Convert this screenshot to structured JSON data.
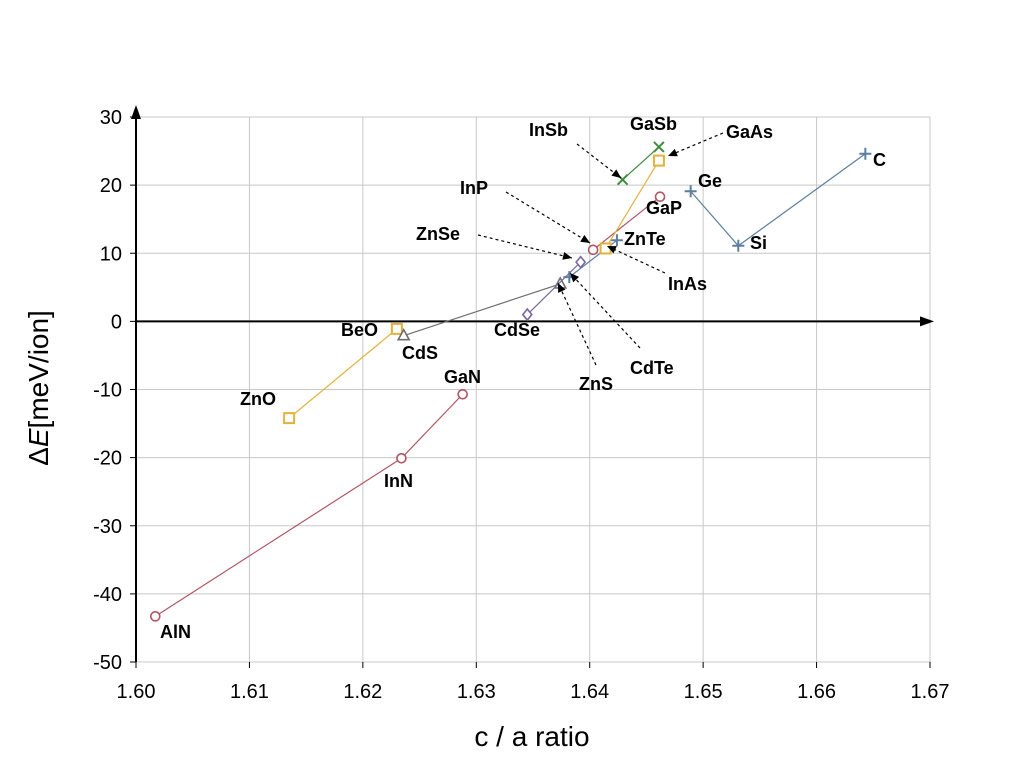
{
  "chart_data": {
    "type": "scatter",
    "xlabel": "c / a ratio",
    "ylabel_prefix": "Δ",
    "ylabel_italic": "E",
    "ylabel_suffix": "[meV/ion]",
    "xlim": [
      1.6,
      1.67
    ],
    "ylim": [
      -50,
      30
    ],
    "xticks": [
      "1.60",
      "1.61",
      "1.62",
      "1.63",
      "1.64",
      "1.65",
      "1.66",
      "1.67"
    ],
    "yticks": [
      "30",
      "20",
      "10",
      "0",
      "-10",
      "-20",
      "-30",
      "-40",
      "-50"
    ],
    "grid": true,
    "series": [
      {
        "marker": "circle",
        "color": "#b05562",
        "points": [
          {
            "label": "AlN",
            "x": 1.6017,
            "y": -43.3
          },
          {
            "label": "InN",
            "x": 1.6234,
            "y": -20.1
          },
          {
            "label": "GaN",
            "x": 1.6288,
            "y": -10.7
          }
        ]
      },
      {
        "marker": "square",
        "color": "#e2b23a",
        "points": [
          {
            "label": "ZnO",
            "x": 1.6135,
            "y": -14.2
          },
          {
            "label": "BeO",
            "x": 1.623,
            "y": -1.1
          }
        ]
      },
      {
        "marker": "triangle",
        "color": "#6f6f6f",
        "points": [
          {
            "label": "CdS",
            "x": 1.6236,
            "y": -2.1
          },
          {
            "label": "ZnS",
            "x": 1.6374,
            "y": 5.5
          }
        ]
      },
      {
        "marker": "diamond",
        "color": "#7a6a9e",
        "points": [
          {
            "label": "CdSe",
            "x": 1.6345,
            "y": 1.0
          },
          {
            "label": "ZnSe",
            "x": 1.6392,
            "y": 8.7
          }
        ]
      },
      {
        "marker": "plus",
        "color": "#5b7fa0",
        "points": [
          {
            "label": "CdTe",
            "x": 1.6382,
            "y": 6.5
          },
          {
            "label": "ZnTe",
            "x": 1.6424,
            "y": 11.9
          }
        ]
      },
      {
        "marker": "circle",
        "color": "#b05562",
        "points": [
          {
            "label": "InP",
            "x": 1.6403,
            "y": 10.5
          },
          {
            "label": "GaP",
            "x": 1.6462,
            "y": 18.3
          }
        ]
      },
      {
        "marker": "square",
        "color": "#e2b23a",
        "points": [
          {
            "label": "InAs",
            "x": 1.6414,
            "y": 10.7
          },
          {
            "label": "GaAs",
            "x": 1.6461,
            "y": 23.6
          }
        ]
      },
      {
        "marker": "cross",
        "color": "#3e8a3e",
        "points": [
          {
            "label": "InSb",
            "x": 1.6429,
            "y": 20.8
          },
          {
            "label": "GaSb",
            "x": 1.6461,
            "y": 25.6
          }
        ]
      },
      {
        "marker": "plus",
        "color": "#5b7fa0",
        "points": [
          {
            "label": "Ge",
            "x": 1.6489,
            "y": 19.1
          },
          {
            "label": "Si",
            "x": 1.6531,
            "y": 11.1
          },
          {
            "label": "C",
            "x": 1.6643,
            "y": 24.6
          }
        ]
      }
    ]
  }
}
